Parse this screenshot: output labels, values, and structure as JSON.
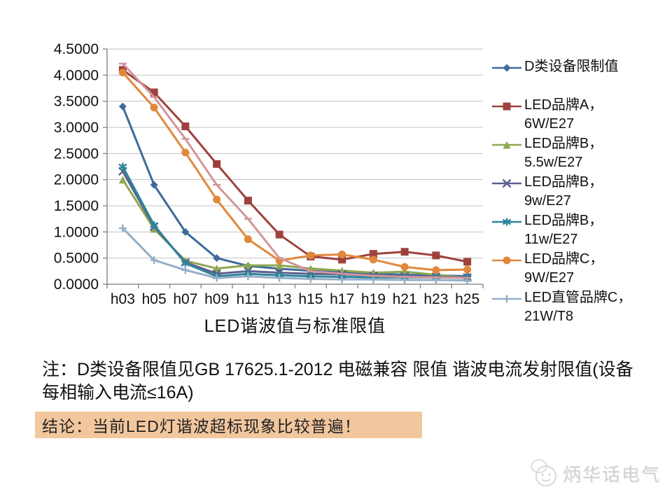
{
  "chart_data": {
    "type": "line",
    "title": "LED谐波值与标准限值",
    "categories": [
      "h03",
      "h05",
      "h07",
      "h09",
      "h11",
      "h13",
      "h15",
      "h17",
      "h19",
      "h21",
      "h23",
      "h25"
    ],
    "y_axis": {
      "min": 0.0,
      "max": 4.5,
      "step": 0.5,
      "label_decimals": 4,
      "tick_labels": [
        "0.0000",
        "0.5000",
        "1.0000",
        "1.5000",
        "2.0000",
        "2.5000",
        "3.0000",
        "3.5000",
        "4.0000",
        "4.5000"
      ]
    },
    "grid": true,
    "legend_position": "right",
    "series": [
      {
        "id": "d-class-limit",
        "name": "D类设备限制值",
        "legend_lines": [
          "D类设备限制值"
        ],
        "color": "#3e6b9b",
        "marker": "diamond",
        "values": [
          3.4,
          1.9,
          1.0,
          0.5,
          0.35,
          0.296,
          0.2567,
          0.2265,
          0.2026,
          0.1833,
          0.1674,
          0.154
        ]
      },
      {
        "id": "led-brand-a-6w-e27",
        "name": "LED品牌A，6W/E27",
        "legend_lines": [
          "LED品牌A，",
          "6W/E27"
        ],
        "color": "#9e413c",
        "marker": "square",
        "values": [
          4.1,
          3.67,
          3.02,
          2.3,
          1.6,
          0.95,
          0.53,
          0.47,
          0.58,
          0.62,
          0.55,
          0.43
        ]
      },
      {
        "id": "led-brand-b-5p5w-e27",
        "name": "LED品牌B，5.5w/E27",
        "legend_lines": [
          "LED品牌B，",
          "5.5w/E27"
        ],
        "color": "#8ea84f",
        "marker": "triangle",
        "values": [
          2.0,
          1.06,
          0.45,
          0.3,
          0.36,
          0.36,
          0.3,
          0.26,
          0.22,
          0.24,
          0.18,
          0.12
        ]
      },
      {
        "id": "led-brand-b-9w-e27",
        "name": "LED品牌B，9w/E27",
        "legend_lines": [
          "LED品牌B，",
          "9w/E27"
        ],
        "color": "#5c5f8f",
        "marker": "x",
        "values": [
          2.16,
          1.1,
          0.42,
          0.2,
          0.25,
          0.22,
          0.2,
          0.19,
          0.16,
          0.15,
          0.14,
          0.13
        ]
      },
      {
        "id": "led-brand-b-11w-e27",
        "name": "LED品牌B，11w/E27",
        "legend_lines": [
          "LED品牌B，",
          "11w/E27"
        ],
        "color": "#2f859b",
        "marker": "asterisk",
        "values": [
          2.25,
          1.13,
          0.4,
          0.15,
          0.2,
          0.17,
          0.15,
          0.14,
          0.13,
          0.13,
          0.13,
          0.12
        ]
      },
      {
        "id": "led-brand-c-9w-e27",
        "name": "LED品牌C，9W/E27",
        "legend_lines": [
          "LED品牌C，",
          "9W/E27"
        ],
        "color": "#e0883b",
        "marker": "circle",
        "values": [
          4.05,
          3.38,
          2.52,
          1.62,
          0.86,
          0.45,
          0.55,
          0.57,
          0.47,
          0.33,
          0.27,
          0.28
        ]
      },
      {
        "id": "led-tube-brand-c-21w-t8",
        "name": "LED直管品牌C，21W/T8",
        "legend_lines": [
          "LED直管品牌C，",
          "21W/T8"
        ],
        "color": "#94afc8",
        "marker": "plus",
        "values": [
          1.07,
          0.46,
          0.27,
          0.12,
          0.15,
          0.12,
          0.1,
          0.09,
          0.09,
          0.08,
          0.08,
          0.07
        ]
      },
      {
        "id": "series-8-pink-unlabeled",
        "name": "",
        "legend_lines": [],
        "color": "#d29599",
        "marker": "dash",
        "values": [
          4.22,
          3.58,
          2.78,
          1.9,
          1.25,
          0.5,
          0.25,
          0.2,
          0.16,
          0.14,
          0.13,
          0.12
        ]
      }
    ],
    "colors": {
      "gridline": "#c2c2c2",
      "axis": "#8f8f8f",
      "background": "#ffffff"
    }
  },
  "note": {
    "line1": "注：D类设备限值见GB 17625.1-2012 电磁兼容 限值 谐波电流发射限值(设备",
    "line2": "每相输入电流≤16A)"
  },
  "conclusion": {
    "text": "结论：当前LED灯谐波超标现象比较普遍！",
    "highlight_color": "#f2c79e"
  },
  "watermark": {
    "text": "炳华话电气"
  }
}
